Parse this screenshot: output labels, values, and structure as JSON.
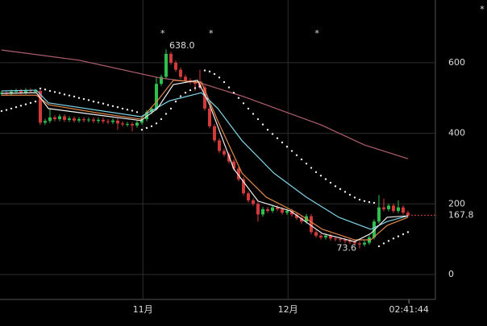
{
  "chart_data": {
    "type": "candlestick",
    "ylim": [
      -70.7,
      777.6
    ],
    "yticks": [
      0,
      200,
      400,
      600
    ],
    "xlim": [
      -0.33,
      89.67
    ],
    "xticks": [
      {
        "value": 29.2,
        "label": "11月"
      },
      {
        "value": 59.2,
        "label": "12月"
      },
      {
        "value": 84.2,
        "label": "02:41:44"
      }
    ],
    "grid": true,
    "up_color": "#2fbf4f",
    "down_color": "#d23a3a",
    "candles": [
      [
        512,
        521,
        506,
        515
      ],
      [
        515,
        521,
        506,
        512
      ],
      [
        512,
        524,
        506,
        518
      ],
      [
        518,
        526,
        512,
        520
      ],
      [
        520,
        526,
        510,
        516
      ],
      [
        516,
        528,
        510,
        522
      ],
      [
        522,
        528,
        513,
        519
      ],
      [
        519,
        526,
        513,
        520
      ],
      [
        520,
        524,
        424,
        430
      ],
      [
        430,
        441,
        424,
        435
      ],
      [
        435,
        470,
        429,
        445
      ],
      [
        445,
        451,
        434,
        440
      ],
      [
        440,
        454,
        434,
        448
      ],
      [
        448,
        454,
        432,
        438
      ],
      [
        438,
        448,
        432,
        442
      ],
      [
        442,
        448,
        430,
        436
      ],
      [
        436,
        446,
        430,
        440
      ],
      [
        440,
        446,
        431,
        437
      ],
      [
        437,
        445,
        431,
        439
      ],
      [
        439,
        445,
        429,
        435
      ],
      [
        435,
        444,
        429,
        438
      ],
      [
        438,
        444,
        428,
        434
      ],
      [
        434,
        440,
        426,
        432
      ],
      [
        432,
        442,
        426,
        436
      ],
      [
        436,
        442,
        410,
        428
      ],
      [
        428,
        434,
        419,
        425
      ],
      [
        425,
        432,
        419,
        426
      ],
      [
        426,
        432,
        405,
        422
      ],
      [
        422,
        436,
        416,
        430
      ],
      [
        430,
        446,
        424,
        440
      ],
      [
        440,
        466,
        434,
        460
      ],
      [
        460,
        476,
        454,
        470
      ],
      [
        470,
        560,
        464,
        540
      ],
      [
        540,
        566,
        534,
        560
      ],
      [
        560,
        638,
        554,
        625
      ],
      [
        625,
        631,
        594,
        600
      ],
      [
        600,
        606,
        574,
        580
      ],
      [
        580,
        586,
        554,
        560
      ],
      [
        560,
        566,
        544,
        550
      ],
      [
        550,
        556,
        539,
        545
      ],
      [
        545,
        551,
        520,
        540
      ],
      [
        540,
        580,
        524,
        530
      ],
      [
        530,
        536,
        464,
        470
      ],
      [
        470,
        476,
        414,
        420
      ],
      [
        420,
        426,
        374,
        380
      ],
      [
        380,
        386,
        344,
        350
      ],
      [
        350,
        356,
        334,
        340
      ],
      [
        340,
        346,
        314,
        320
      ],
      [
        320,
        326,
        294,
        300
      ],
      [
        300,
        306,
        264,
        270
      ],
      [
        270,
        276,
        224,
        230
      ],
      [
        230,
        236,
        204,
        210
      ],
      [
        210,
        216,
        194,
        200
      ],
      [
        200,
        206,
        150,
        170
      ],
      [
        170,
        191,
        164,
        185
      ],
      [
        185,
        191,
        174,
        180
      ],
      [
        180,
        196,
        174,
        190
      ],
      [
        190,
        196,
        179,
        185
      ],
      [
        185,
        191,
        169,
        175
      ],
      [
        175,
        186,
        169,
        180
      ],
      [
        180,
        186,
        164,
        170
      ],
      [
        170,
        176,
        154,
        160
      ],
      [
        160,
        166,
        144,
        150
      ],
      [
        150,
        171,
        144,
        165
      ],
      [
        165,
        171,
        114,
        120
      ],
      [
        120,
        126,
        104,
        110
      ],
      [
        110,
        116,
        99,
        105
      ],
      [
        105,
        116,
        99,
        110
      ],
      [
        110,
        116,
        96,
        102
      ],
      [
        102,
        108,
        94,
        100
      ],
      [
        100,
        106,
        92,
        98
      ],
      [
        98,
        104,
        89,
        95
      ],
      [
        95,
        101,
        86,
        92
      ],
      [
        92,
        98,
        82,
        88
      ],
      [
        88,
        94,
        73.6,
        85
      ],
      [
        85,
        96,
        79,
        90
      ],
      [
        90,
        111,
        84,
        105
      ],
      [
        105,
        156,
        99,
        150
      ],
      [
        150,
        225,
        144,
        190
      ],
      [
        190,
        215,
        179,
        185
      ],
      [
        185,
        201,
        179,
        195
      ],
      [
        195,
        201,
        174,
        180
      ],
      [
        180,
        210,
        174,
        190
      ],
      [
        190,
        196,
        169,
        175
      ],
      [
        175,
        181,
        162,
        167.8
      ]
    ],
    "series": [
      {
        "color": "#b0606e",
        "x": [
          0,
          16,
          33,
          41,
          50,
          66,
          75,
          84
        ],
        "values": [
          636,
          607,
          556,
          543,
          504,
          424,
          367,
          328
        ]
      },
      {
        "color": "#e0874a",
        "x": [
          0,
          7.2,
          9.7,
          19.7,
          28.8,
          32.2,
          35.5,
          41.3,
          44.7,
          49.7,
          54.7,
          61.3,
          66.3,
          73,
          76.3,
          79.7,
          84
        ],
        "values": [
          508,
          508,
          481,
          458,
          440,
          492,
          550,
          545,
          435,
          287,
          219,
          173,
          128,
          98,
          98,
          139,
          162
        ]
      },
      {
        "color": "#7fd3e6",
        "x": [
          0,
          7.2,
          9.7,
          28.8,
          34.7,
          41.3,
          44.7,
          49.7,
          56.3,
          63,
          69.7,
          76.3,
          79.7,
          84
        ],
        "values": [
          520,
          522,
          486,
          447,
          492,
          515,
          470,
          379,
          287,
          219,
          162,
          128,
          150,
          166
        ]
      },
      {
        "color": "#f0f0f0",
        "x": [
          0,
          7.2,
          9.7,
          28.8,
          32.2,
          35.5,
          40.5,
          43,
          48,
          53,
          59.7,
          66.3,
          73,
          76.3,
          79.7,
          84
        ],
        "values": [
          513,
          515,
          470,
          436,
          470,
          538,
          550,
          481,
          299,
          208,
          180,
          116,
          93,
          116,
          162,
          166
        ]
      }
    ],
    "sar": [
      463,
      466,
      470,
      474,
      478,
      482,
      486,
      490,
      527,
      524,
      520,
      517,
      514,
      510,
      507,
      504,
      500,
      497,
      494,
      490,
      487,
      484,
      480,
      477,
      474,
      470,
      467,
      464,
      460,
      410,
      415,
      420,
      428,
      440,
      455,
      470,
      490,
      505,
      515,
      522,
      528,
      532,
      578,
      575,
      568,
      558,
      545,
      530,
      515,
      500,
      485,
      470,
      455,
      440,
      425,
      410,
      398,
      386,
      374,
      362,
      350,
      338,
      326,
      314,
      302,
      290,
      280,
      270,
      260,
      250,
      242,
      234,
      226,
      218,
      212,
      208,
      205,
      203,
      80,
      88,
      95,
      102,
      108,
      114,
      120
    ],
    "annotations": [
      {
        "x": 34,
        "value": 638,
        "label": "638.0"
      },
      {
        "x": 74,
        "value": 73.6,
        "label": "73.6"
      }
    ],
    "markers": [
      {
        "x": 33.3,
        "label": "*"
      },
      {
        "x": 43.3,
        "label": "*"
      },
      {
        "x": 65.2,
        "label": "*"
      }
    ],
    "last": 167.8,
    "corner_icon": "*"
  }
}
